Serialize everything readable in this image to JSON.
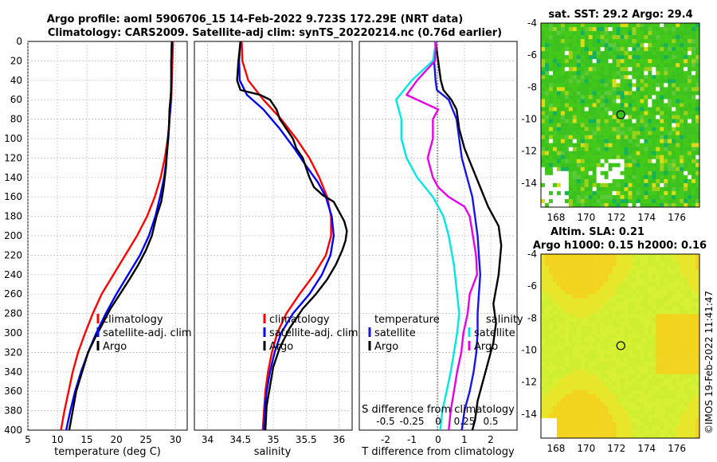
{
  "header": {
    "line1": "Argo profile: aoml 5906706_15 14-Feb-2022 9.723S 172.29E (NRT data)",
    "line2": "Climatology: CARS2009. Satellite-adj clim: synTS_20220214.nc (0.76d earlier)"
  },
  "colors": {
    "climatology": "#ff0000",
    "satellite": "#0000ff",
    "argo": "#000000",
    "temp_diff_satellite": "#1515e6",
    "sal_diff_satellite": "#00e5e5",
    "sal_diff_argo": "#e600e6"
  },
  "depth_ticks": [
    "0",
    "20",
    "40",
    "60",
    "80",
    "100",
    "120",
    "140",
    "160",
    "180",
    "200",
    "220",
    "240",
    "260",
    "280",
    "300",
    "320",
    "340",
    "360",
    "380",
    "400"
  ],
  "chart_data": [
    {
      "type": "line",
      "panel": "temperature",
      "xlabel": "temperature (deg C)",
      "ylabel": "",
      "xlim": [
        5,
        32
      ],
      "ylim": [
        0,
        400
      ],
      "xticks": [
        "5",
        "10",
        "15",
        "20",
        "25",
        "30"
      ],
      "legend": [
        "climatology",
        "satellite-adj. clim",
        "Argo"
      ],
      "series": [
        {
          "name": "climatology",
          "color": "#ff0000",
          "points": [
            [
              29.6,
              0
            ],
            [
              29.5,
              20
            ],
            [
              29.4,
              40
            ],
            [
              29.3,
              60
            ],
            [
              29.0,
              80
            ],
            [
              28.7,
              100
            ],
            [
              28.2,
              120
            ],
            [
              27.5,
              140
            ],
            [
              26.5,
              160
            ],
            [
              25.2,
              180
            ],
            [
              23.5,
              200
            ],
            [
              21.5,
              220
            ],
            [
              19.5,
              240
            ],
            [
              17.5,
              260
            ],
            [
              16.0,
              280
            ],
            [
              14.7,
              300
            ],
            [
              13.5,
              320
            ],
            [
              12.6,
              340
            ],
            [
              11.9,
              360
            ],
            [
              11.2,
              380
            ],
            [
              10.6,
              400
            ]
          ]
        },
        {
          "name": "satellite-adj. clim",
          "color": "#0000ff",
          "points": [
            [
              29.4,
              0
            ],
            [
              29.3,
              20
            ],
            [
              29.3,
              40
            ],
            [
              29.2,
              60
            ],
            [
              29.0,
              80
            ],
            [
              28.8,
              100
            ],
            [
              28.5,
              120
            ],
            [
              28.1,
              140
            ],
            [
              27.4,
              160
            ],
            [
              26.6,
              180
            ],
            [
              25.5,
              200
            ],
            [
              24.0,
              220
            ],
            [
              22.0,
              240
            ],
            [
              20.0,
              260
            ],
            [
              18.2,
              280
            ],
            [
              16.6,
              300
            ],
            [
              15.2,
              320
            ],
            [
              14.0,
              340
            ],
            [
              13.0,
              360
            ],
            [
              12.2,
              380
            ],
            [
              11.5,
              400
            ]
          ]
        },
        {
          "name": "Argo",
          "color": "#000000",
          "points": [
            [
              29.4,
              0
            ],
            [
              29.3,
              20
            ],
            [
              29.3,
              40
            ],
            [
              29.3,
              50
            ],
            [
              29.0,
              70
            ],
            [
              28.9,
              90
            ],
            [
              28.6,
              110
            ],
            [
              28.4,
              130
            ],
            [
              28.0,
              150
            ],
            [
              27.6,
              165
            ],
            [
              26.8,
              180
            ],
            [
              26.0,
              200
            ],
            [
              25.0,
              215
            ],
            [
              23.7,
              230
            ],
            [
              22.2,
              245
            ],
            [
              20.6,
              260
            ],
            [
              19.0,
              275
            ],
            [
              17.7,
              290
            ],
            [
              16.4,
              305
            ],
            [
              15.2,
              320
            ],
            [
              14.2,
              340
            ],
            [
              13.2,
              360
            ],
            [
              12.6,
              380
            ],
            [
              12.0,
              400
            ]
          ]
        }
      ]
    },
    {
      "type": "line",
      "panel": "salinity",
      "xlabel": "salinity",
      "ylabel": "",
      "xlim": [
        33.8,
        36.2
      ],
      "ylim": [
        0,
        400
      ],
      "xticks": [
        "34",
        "34.5",
        "35",
        "35.5",
        "36"
      ],
      "legend": [
        "climatology",
        "satellite-adj. clim",
        "Argo"
      ],
      "series": [
        {
          "name": "climatology",
          "color": "#ff0000",
          "points": [
            [
              34.52,
              0
            ],
            [
              34.53,
              20
            ],
            [
              34.62,
              40
            ],
            [
              34.85,
              60
            ],
            [
              35.12,
              80
            ],
            [
              35.35,
              100
            ],
            [
              35.55,
              120
            ],
            [
              35.7,
              140
            ],
            [
              35.82,
              160
            ],
            [
              35.88,
              180
            ],
            [
              35.88,
              200
            ],
            [
              35.8,
              220
            ],
            [
              35.62,
              240
            ],
            [
              35.4,
              260
            ],
            [
              35.2,
              280
            ],
            [
              35.06,
              300
            ],
            [
              34.98,
              320
            ],
            [
              34.92,
              340
            ],
            [
              34.88,
              360
            ],
            [
              34.86,
              380
            ],
            [
              34.84,
              400
            ]
          ]
        },
        {
          "name": "satellite-adj. clim",
          "color": "#0000ff",
          "points": [
            [
              34.5,
              0
            ],
            [
              34.48,
              20
            ],
            [
              34.49,
              40
            ],
            [
              34.6,
              55
            ],
            [
              34.85,
              70
            ],
            [
              35.1,
              90
            ],
            [
              35.32,
              110
            ],
            [
              35.52,
              130
            ],
            [
              35.68,
              145
            ],
            [
              35.8,
              160
            ],
            [
              35.89,
              180
            ],
            [
              35.92,
              200
            ],
            [
              35.87,
              220
            ],
            [
              35.74,
              240
            ],
            [
              35.55,
              260
            ],
            [
              35.3,
              280
            ],
            [
              35.12,
              300
            ],
            [
              35.02,
              320
            ],
            [
              34.95,
              340
            ],
            [
              34.9,
              360
            ],
            [
              34.87,
              380
            ],
            [
              34.86,
              400
            ]
          ]
        },
        {
          "name": "Argo",
          "color": "#000000",
          "points": [
            [
              34.5,
              0
            ],
            [
              34.47,
              20
            ],
            [
              34.45,
              40
            ],
            [
              34.5,
              50
            ],
            [
              34.8,
              55
            ],
            [
              34.95,
              60
            ],
            [
              35.05,
              70
            ],
            [
              35.1,
              80
            ],
            [
              35.2,
              90
            ],
            [
              35.3,
              100
            ],
            [
              35.35,
              110
            ],
            [
              35.45,
              120
            ],
            [
              35.5,
              130
            ],
            [
              35.55,
              140
            ],
            [
              35.62,
              150
            ],
            [
              35.75,
              158
            ],
            [
              35.92,
              165
            ],
            [
              36.0,
              175
            ],
            [
              36.08,
              185
            ],
            [
              36.12,
              195
            ],
            [
              36.1,
              205
            ],
            [
              36.05,
              215
            ],
            [
              35.95,
              230
            ],
            [
              35.82,
              245
            ],
            [
              35.65,
              260
            ],
            [
              35.45,
              275
            ],
            [
              35.25,
              295
            ],
            [
              35.1,
              315
            ],
            [
              35.0,
              335
            ],
            [
              34.95,
              355
            ],
            [
              34.9,
              375
            ],
            [
              34.88,
              400
            ]
          ]
        }
      ]
    },
    {
      "type": "line",
      "panel": "difference",
      "xlabel": "T difference from climatology",
      "xlabel_top": "S difference from climatology",
      "xlim": [
        -3,
        3
      ],
      "ylim": [
        0,
        400
      ],
      "xticks": [
        "-2",
        "-1",
        "0",
        "1",
        "2"
      ],
      "xticks_salinity": [
        "-0.5",
        "-0.25",
        "0",
        "0.25",
        "0.5"
      ],
      "legend_temperature": {
        "title": "temperature",
        "items": [
          "satellite",
          "Argo"
        ]
      },
      "legend_salinity": {
        "title": "salinity",
        "items": [
          "satellite",
          "Argo"
        ]
      },
      "series": [
        {
          "name": "temperature satellite",
          "color": "#1515e6",
          "points": [
            [
              -0.1,
              0
            ],
            [
              -0.15,
              20
            ],
            [
              -0.1,
              40
            ],
            [
              -0.05,
              50
            ],
            [
              0.4,
              60
            ],
            [
              0.7,
              80
            ],
            [
              0.8,
              100
            ],
            [
              0.9,
              120
            ],
            [
              1.1,
              140
            ],
            [
              1.3,
              160
            ],
            [
              1.4,
              180
            ],
            [
              1.5,
              200
            ],
            [
              1.55,
              220
            ],
            [
              1.6,
              240
            ],
            [
              1.55,
              260
            ],
            [
              1.5,
              280
            ],
            [
              1.5,
              300
            ],
            [
              1.45,
              320
            ],
            [
              1.35,
              340
            ],
            [
              1.2,
              360
            ],
            [
              1.0,
              380
            ],
            [
              0.9,
              400
            ]
          ]
        },
        {
          "name": "temperature Argo",
          "color": "#000000",
          "points": [
            [
              -0.1,
              0
            ],
            [
              0.0,
              20
            ],
            [
              0.1,
              40
            ],
            [
              0.2,
              50
            ],
            [
              0.5,
              60
            ],
            [
              0.7,
              70
            ],
            [
              0.8,
              90
            ],
            [
              1.0,
              110
            ],
            [
              1.3,
              130
            ],
            [
              1.6,
              150
            ],
            [
              1.9,
              170
            ],
            [
              2.3,
              190
            ],
            [
              2.4,
              210
            ],
            [
              2.3,
              240
            ],
            [
              2.1,
              270
            ],
            [
              2.2,
              290
            ],
            [
              2.1,
              310
            ],
            [
              1.9,
              330
            ],
            [
              1.7,
              350
            ],
            [
              1.5,
              370
            ],
            [
              1.4,
              390
            ],
            [
              1.3,
              400
            ]
          ]
        },
        {
          "name": "salinity satellite",
          "color": "#00e5e5",
          "points": [
            [
              -0.02,
              0
            ],
            [
              -0.05,
              20
            ],
            [
              -0.25,
              40
            ],
            [
              -0.4,
              60
            ],
            [
              -0.35,
              80
            ],
            [
              -0.35,
              100
            ],
            [
              -0.3,
              120
            ],
            [
              -0.2,
              140
            ],
            [
              -0.05,
              160
            ],
            [
              0.05,
              180
            ],
            [
              0.1,
              200
            ],
            [
              0.15,
              230
            ],
            [
              0.18,
              260
            ],
            [
              0.2,
              280
            ],
            [
              0.18,
              300
            ],
            [
              0.15,
              320
            ],
            [
              0.12,
              340
            ],
            [
              0.08,
              360
            ],
            [
              0.04,
              380
            ],
            [
              0.02,
              400
            ]
          ]
        },
        {
          "name": "salinity Argo",
          "color": "#e600e6",
          "points": [
            [
              -0.02,
              0
            ],
            [
              -0.03,
              20
            ],
            [
              -0.2,
              40
            ],
            [
              -0.3,
              55
            ],
            [
              0.0,
              70
            ],
            [
              -0.05,
              80
            ],
            [
              -0.05,
              100
            ],
            [
              -0.1,
              120
            ],
            [
              -0.05,
              140
            ],
            [
              0.0,
              150
            ],
            [
              0.1,
              160
            ],
            [
              0.25,
              170
            ],
            [
              0.3,
              180
            ],
            [
              0.33,
              200
            ],
            [
              0.36,
              220
            ],
            [
              0.37,
              240
            ],
            [
              0.3,
              260
            ],
            [
              0.28,
              280
            ],
            [
              0.24,
              300
            ],
            [
              0.22,
              320
            ],
            [
              0.18,
              340
            ],
            [
              0.15,
              360
            ],
            [
              0.12,
              380
            ],
            [
              0.1,
              400
            ]
          ]
        }
      ]
    },
    {
      "type": "heatmap",
      "panel": "sst_map",
      "title": "sat. SST: 29.2 Argo: 29.4",
      "xlim": [
        167,
        177.5
      ],
      "ylim": [
        -15.5,
        -4
      ],
      "xticks": [
        "168",
        "170",
        "172",
        "174",
        "176"
      ],
      "yticks": [
        "-4",
        "-6",
        "-8",
        "-10",
        "-12",
        "-14"
      ],
      "marker": {
        "lon": 172.29,
        "lat": -9.723
      }
    },
    {
      "type": "heatmap",
      "panel": "sla_map",
      "title": "Altim. SLA: 0.21",
      "subtitle": "Argo h1000: 0.15 h2000: 0.16",
      "xlim": [
        167,
        177.5
      ],
      "ylim": [
        -15.5,
        -4
      ],
      "xticks": [
        "168",
        "170",
        "172",
        "174",
        "176"
      ],
      "yticks": [
        "-4",
        "-6",
        "-8",
        "-10",
        "-12",
        "-14"
      ],
      "marker": {
        "lon": 172.29,
        "lat": -9.723
      }
    }
  ],
  "watermark": "©IMOS 19-Feb-2022 11:41:47"
}
